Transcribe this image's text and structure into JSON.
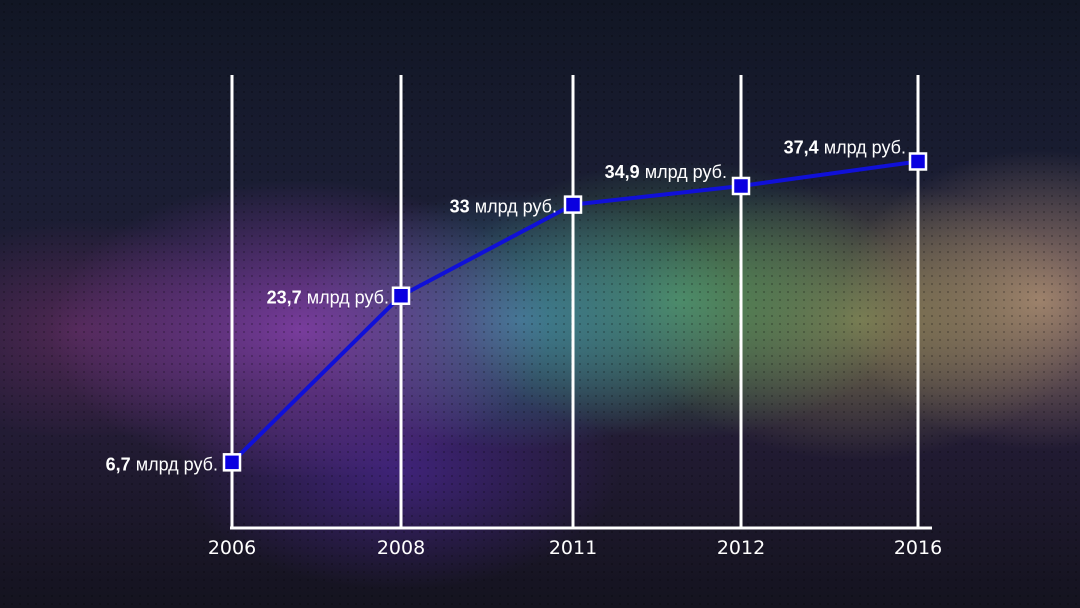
{
  "chart_data": {
    "type": "line",
    "categories": [
      "2006",
      "2008",
      "2011",
      "2012",
      "2016"
    ],
    "values": [
      6.7,
      23.7,
      33,
      34.9,
      37.4
    ],
    "unit": "млрд руб.",
    "data_labels": [
      {
        "number": "6,7",
        "unit": "млрд руб."
      },
      {
        "number": "23,7",
        "unit": "млрд руб."
      },
      {
        "number": "33",
        "unit": "млрд руб."
      },
      {
        "number": "34,9",
        "unit": "млрд руб."
      },
      {
        "number": "37,4",
        "unit": "млрд руб."
      }
    ],
    "title": "",
    "xlabel": "",
    "ylabel": "",
    "grid": "vertical lines at each category",
    "colors": {
      "line": "#1010d8",
      "marker_fill": "#0a00e0",
      "marker_stroke": "#ffffff",
      "axis": "#ffffff"
    }
  }
}
